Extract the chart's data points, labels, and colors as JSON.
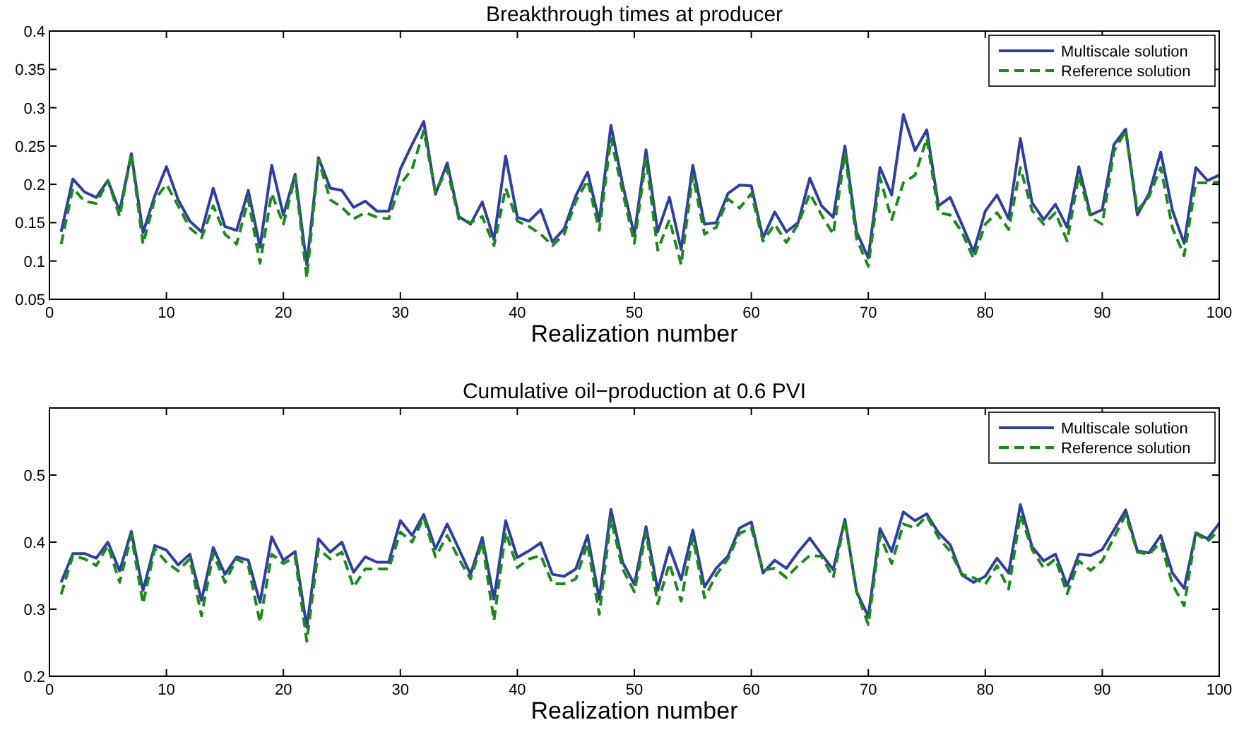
{
  "chart_data": [
    {
      "type": "line",
      "title": "Breakthrough times at producer",
      "xlabel": "Realization number",
      "x": [
        1,
        2,
        3,
        4,
        5,
        6,
        7,
        8,
        9,
        10,
        11,
        12,
        13,
        14,
        15,
        16,
        17,
        18,
        19,
        20,
        21,
        22,
        23,
        24,
        25,
        26,
        27,
        28,
        29,
        30,
        31,
        32,
        33,
        34,
        35,
        36,
        37,
        38,
        39,
        40,
        41,
        42,
        43,
        44,
        45,
        46,
        47,
        48,
        49,
        50,
        51,
        52,
        53,
        54,
        55,
        56,
        57,
        58,
        59,
        60,
        61,
        62,
        63,
        64,
        65,
        66,
        67,
        68,
        69,
        70,
        71,
        72,
        73,
        74,
        75,
        76,
        77,
        78,
        79,
        80,
        81,
        82,
        83,
        84,
        85,
        86,
        87,
        88,
        89,
        90,
        91,
        92,
        93,
        94,
        95,
        96,
        97,
        98,
        99,
        100
      ],
      "series": [
        {
          "name": "Multiscale solution",
          "color": "#2f3f9f",
          "line_style": "solid",
          "values": [
            0.138,
            0.207,
            0.19,
            0.183,
            0.205,
            0.165,
            0.24,
            0.137,
            0.185,
            0.223,
            0.18,
            0.152,
            0.138,
            0.195,
            0.145,
            0.14,
            0.192,
            0.118,
            0.225,
            0.16,
            0.213,
            0.095,
            0.235,
            0.195,
            0.192,
            0.17,
            0.178,
            0.165,
            0.165,
            0.22,
            0.252,
            0.282,
            0.187,
            0.228,
            0.158,
            0.148,
            0.177,
            0.128,
            0.237,
            0.157,
            0.152,
            0.167,
            0.125,
            0.142,
            0.185,
            0.216,
            0.152,
            0.277,
            0.2,
            0.134,
            0.245,
            0.138,
            0.183,
            0.115,
            0.225,
            0.148,
            0.15,
            0.188,
            0.199,
            0.198,
            0.13,
            0.164,
            0.138,
            0.15,
            0.208,
            0.172,
            0.157,
            0.25,
            0.138,
            0.104,
            0.222,
            0.186,
            0.291,
            0.244,
            0.271,
            0.172,
            0.183,
            0.148,
            0.112,
            0.165,
            0.186,
            0.155,
            0.26,
            0.176,
            0.154,
            0.174,
            0.144,
            0.223,
            0.16,
            0.167,
            0.252,
            0.272,
            0.16,
            0.188,
            0.242,
            0.166,
            0.123,
            0.222,
            0.205,
            0.212
          ]
        },
        {
          "name": "Reference solution",
          "color": "#1a8a1a",
          "line_style": "dashed",
          "values": [
            0.122,
            0.195,
            0.178,
            0.175,
            0.205,
            0.158,
            0.24,
            0.122,
            0.18,
            0.2,
            0.172,
            0.143,
            0.13,
            0.172,
            0.135,
            0.122,
            0.18,
            0.097,
            0.188,
            0.148,
            0.21,
            0.078,
            0.232,
            0.18,
            0.17,
            0.155,
            0.163,
            0.157,
            0.155,
            0.2,
            0.22,
            0.27,
            0.19,
            0.22,
            0.155,
            0.15,
            0.158,
            0.12,
            0.195,
            0.152,
            0.145,
            0.135,
            0.12,
            0.135,
            0.178,
            0.205,
            0.14,
            0.26,
            0.19,
            0.123,
            0.234,
            0.114,
            0.154,
            0.095,
            0.212,
            0.135,
            0.144,
            0.181,
            0.169,
            0.188,
            0.126,
            0.148,
            0.124,
            0.148,
            0.188,
            0.16,
            0.135,
            0.24,
            0.129,
            0.093,
            0.209,
            0.154,
            0.202,
            0.212,
            0.26,
            0.163,
            0.16,
            0.138,
            0.103,
            0.148,
            0.163,
            0.141,
            0.222,
            0.166,
            0.148,
            0.163,
            0.126,
            0.212,
            0.157,
            0.148,
            0.243,
            0.27,
            0.166,
            0.184,
            0.222,
            0.143,
            0.107,
            0.202,
            0.202,
            0.203
          ]
        }
      ],
      "xlim": [
        0,
        100
      ],
      "xticks": [
        0,
        10,
        20,
        30,
        40,
        50,
        60,
        70,
        80,
        90,
        100
      ],
      "ylim": [
        0.05,
        0.4
      ],
      "yticks": [
        0.05,
        0.1,
        0.15,
        0.2,
        0.25,
        0.3,
        0.35,
        0.4
      ],
      "legend": "top right"
    },
    {
      "type": "line",
      "title": "Cumulative oil−production at 0.6 PVI",
      "xlabel": "Realization number",
      "x": [
        1,
        2,
        3,
        4,
        5,
        6,
        7,
        8,
        9,
        10,
        11,
        12,
        13,
        14,
        15,
        16,
        17,
        18,
        19,
        20,
        21,
        22,
        23,
        24,
        25,
        26,
        27,
        28,
        29,
        30,
        31,
        32,
        33,
        34,
        35,
        36,
        37,
        38,
        39,
        40,
        41,
        42,
        43,
        44,
        45,
        46,
        47,
        48,
        49,
        50,
        51,
        52,
        53,
        54,
        55,
        56,
        57,
        58,
        59,
        60,
        61,
        62,
        63,
        64,
        65,
        66,
        67,
        68,
        69,
        70,
        71,
        72,
        73,
        74,
        75,
        76,
        77,
        78,
        79,
        80,
        81,
        82,
        83,
        84,
        85,
        86,
        87,
        88,
        89,
        90,
        91,
        92,
        93,
        94,
        95,
        96,
        97,
        98,
        99,
        100
      ],
      "series": [
        {
          "name": "Multiscale solution",
          "color": "#2f3f9f",
          "line_style": "solid",
          "values": [
            0.34,
            0.383,
            0.383,
            0.376,
            0.4,
            0.357,
            0.416,
            0.328,
            0.395,
            0.388,
            0.366,
            0.382,
            0.313,
            0.392,
            0.352,
            0.378,
            0.373,
            0.31,
            0.408,
            0.373,
            0.386,
            0.273,
            0.405,
            0.385,
            0.4,
            0.355,
            0.378,
            0.37,
            0.37,
            0.432,
            0.41,
            0.441,
            0.39,
            0.427,
            0.39,
            0.352,
            0.407,
            0.315,
            0.432,
            0.377,
            0.387,
            0.399,
            0.352,
            0.349,
            0.36,
            0.41,
            0.315,
            0.449,
            0.37,
            0.337,
            0.423,
            0.328,
            0.392,
            0.344,
            0.418,
            0.333,
            0.361,
            0.379,
            0.421,
            0.43,
            0.354,
            0.373,
            0.361,
            0.385,
            0.406,
            0.382,
            0.359,
            0.434,
            0.326,
            0.289,
            0.42,
            0.386,
            0.445,
            0.432,
            0.442,
            0.414,
            0.396,
            0.351,
            0.34,
            0.349,
            0.376,
            0.354,
            0.456,
            0.393,
            0.372,
            0.382,
            0.335,
            0.382,
            0.38,
            0.389,
            0.418,
            0.448,
            0.387,
            0.384,
            0.41,
            0.354,
            0.331,
            0.414,
            0.405,
            0.428
          ]
        },
        {
          "name": "Reference solution",
          "color": "#1a8a1a",
          "line_style": "dashed",
          "values": [
            0.322,
            0.38,
            0.375,
            0.365,
            0.395,
            0.34,
            0.41,
            0.308,
            0.39,
            0.37,
            0.357,
            0.375,
            0.29,
            0.383,
            0.34,
            0.375,
            0.365,
            0.28,
            0.382,
            0.368,
            0.378,
            0.252,
            0.39,
            0.375,
            0.385,
            0.333,
            0.36,
            0.36,
            0.36,
            0.415,
            0.4,
            0.437,
            0.378,
            0.41,
            0.375,
            0.345,
            0.4,
            0.283,
            0.415,
            0.362,
            0.375,
            0.38,
            0.338,
            0.338,
            0.345,
            0.398,
            0.292,
            0.435,
            0.36,
            0.326,
            0.414,
            0.308,
            0.368,
            0.312,
            0.407,
            0.317,
            0.351,
            0.375,
            0.413,
            0.421,
            0.358,
            0.361,
            0.347,
            0.365,
            0.38,
            0.379,
            0.347,
            0.432,
            0.326,
            0.277,
            0.41,
            0.368,
            0.427,
            0.421,
            0.439,
            0.407,
            0.386,
            0.352,
            0.347,
            0.337,
            0.365,
            0.33,
            0.441,
            0.389,
            0.361,
            0.375,
            0.323,
            0.372,
            0.358,
            0.372,
            0.407,
            0.441,
            0.385,
            0.382,
            0.4,
            0.337,
            0.305,
            0.413,
            0.401,
            0.418
          ]
        }
      ],
      "xlim": [
        0,
        100
      ],
      "xticks": [
        0,
        10,
        20,
        30,
        40,
        50,
        60,
        70,
        80,
        90,
        100
      ],
      "ylim": [
        0.2,
        0.6
      ],
      "yticks": [
        0.2,
        0.3,
        0.4,
        0.5
      ],
      "legend": "top right"
    }
  ]
}
